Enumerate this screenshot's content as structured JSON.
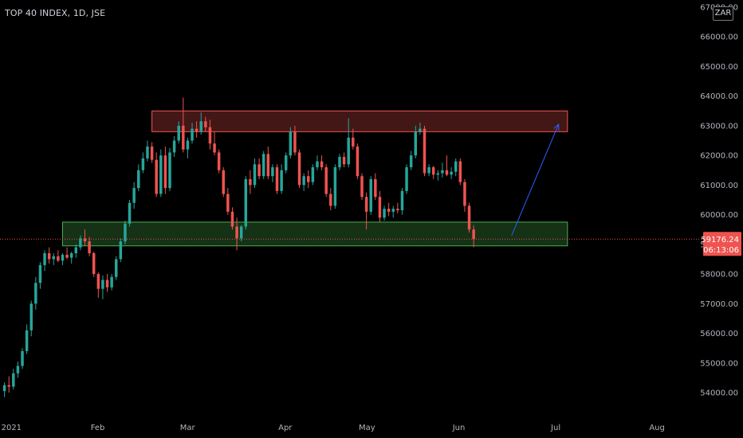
{
  "header": {
    "symbol_title": "TOP 40 INDEX, 1D, JSE",
    "currency": "ZAR"
  },
  "chart_data": {
    "type": "candlestick",
    "title": "TOP 40 INDEX, 1D, JSE",
    "currency": "ZAR",
    "ylim": [
      53500,
      67200
    ],
    "y_ticks": [
      "67000.00",
      "66000.00",
      "65000.00",
      "64000.00",
      "63000.00",
      "62000.00",
      "61000.00",
      "60000.00",
      "59000.00",
      "58000.00",
      "57000.00",
      "56000.00",
      "55000.00",
      "54000.00"
    ],
    "y_tick_values": [
      67000,
      66000,
      65000,
      64000,
      63000,
      62000,
      61000,
      60000,
      59000,
      58000,
      57000,
      56000,
      55000,
      54000
    ],
    "x_ticks": [
      {
        "label": "2021",
        "index": 0
      },
      {
        "label": "Feb",
        "index": 20
      },
      {
        "label": "Mar",
        "index": 40
      },
      {
        "label": "Apr",
        "index": 62
      },
      {
        "label": "May",
        "index": 80
      },
      {
        "label": "Jun",
        "index": 101
      },
      {
        "label": "Jul",
        "index": 123
      },
      {
        "label": "Aug",
        "index": 145
      }
    ],
    "x_domain": [
      -1,
      156
    ],
    "last_price": "59176.24",
    "countdown": "06:13:06",
    "last_value": 59176.24,
    "up_color": "#26a69a",
    "down_color": "#ef5350",
    "zones": [
      {
        "name": "resistance",
        "x_start": 33,
        "x_end": 126,
        "y_low": 62800,
        "y_high": 63500,
        "color": "#ef5350"
      },
      {
        "name": "support",
        "x_start": 13,
        "x_end": 126,
        "y_low": 58950,
        "y_high": 59750,
        "color": "#4caf50"
      }
    ],
    "arrow": {
      "from": [
        113.5,
        59300
      ],
      "to": [
        124,
        63050
      ],
      "color": "#2962ff"
    },
    "candles": [
      [
        0,
        54050,
        54350,
        53850,
        54250
      ],
      [
        1,
        54250,
        54550,
        54000,
        54200
      ],
      [
        2,
        54200,
        54800,
        54100,
        54650
      ],
      [
        3,
        54650,
        55050,
        54500,
        54900
      ],
      [
        4,
        54900,
        55500,
        54800,
        55400
      ],
      [
        5,
        55400,
        56300,
        55300,
        56100
      ],
      [
        6,
        56100,
        57100,
        55900,
        57000
      ],
      [
        7,
        57000,
        57900,
        56800,
        57700
      ],
      [
        8,
        57700,
        58400,
        57500,
        58300
      ],
      [
        9,
        58300,
        58800,
        58100,
        58700
      ],
      [
        10,
        58700,
        58900,
        58350,
        58500
      ],
      [
        11,
        58500,
        58700,
        58300,
        58600
      ],
      [
        12,
        58600,
        58800,
        58400,
        58450
      ],
      [
        13,
        58450,
        58700,
        58300,
        58650
      ],
      [
        14,
        58650,
        58900,
        58500,
        58550
      ],
      [
        15,
        58550,
        58750,
        58350,
        58700
      ],
      [
        16,
        58700,
        59000,
        58550,
        58900
      ],
      [
        17,
        58900,
        59300,
        58800,
        59200
      ],
      [
        18,
        59200,
        59500,
        58950,
        59100
      ],
      [
        19,
        59100,
        59250,
        58600,
        58700
      ],
      [
        20,
        58700,
        58750,
        57900,
        58000
      ],
      [
        21,
        58000,
        58050,
        57200,
        57500
      ],
      [
        22,
        57500,
        57950,
        57150,
        57800
      ],
      [
        23,
        57800,
        58000,
        57400,
        57550
      ],
      [
        24,
        57550,
        58000,
        57450,
        57900
      ],
      [
        25,
        57900,
        58600,
        57800,
        58500
      ],
      [
        26,
        58500,
        59200,
        58400,
        59100
      ],
      [
        27,
        59100,
        59800,
        59000,
        59700
      ],
      [
        28,
        59700,
        60500,
        59600,
        60400
      ],
      [
        29,
        60400,
        61100,
        60200,
        60900
      ],
      [
        30,
        60900,
        61700,
        60800,
        61500
      ],
      [
        31,
        61500,
        62100,
        61400,
        61900
      ],
      [
        32,
        61900,
        62500,
        61800,
        62300
      ],
      [
        33,
        62300,
        62450,
        61750,
        61850
      ],
      [
        34,
        61850,
        62100,
        60600,
        60700
      ],
      [
        35,
        60700,
        62200,
        60600,
        62000
      ],
      [
        36,
        62000,
        62300,
        60700,
        60900
      ],
      [
        37,
        60900,
        62250,
        60800,
        62100
      ],
      [
        38,
        62100,
        62650,
        61950,
        62500
      ],
      [
        39,
        62500,
        63150,
        62400,
        63000
      ],
      [
        40,
        63000,
        63950,
        62100,
        62200
      ],
      [
        41,
        62200,
        62600,
        61900,
        62500
      ],
      [
        42,
        62500,
        63100,
        62400,
        62900
      ],
      [
        43,
        62900,
        63150,
        62600,
        62800
      ],
      [
        44,
        62800,
        63450,
        62700,
        63150
      ],
      [
        45,
        63150,
        63300,
        62800,
        62950
      ],
      [
        46,
        62950,
        63200,
        62200,
        62400
      ],
      [
        47,
        62400,
        62800,
        62000,
        62100
      ],
      [
        48,
        62100,
        62200,
        61400,
        61500
      ],
      [
        49,
        61500,
        61600,
        60600,
        60700
      ],
      [
        50,
        60700,
        60900,
        60000,
        60100
      ],
      [
        51,
        60100,
        60250,
        59500,
        59600
      ],
      [
        52,
        59600,
        59900,
        58800,
        59200
      ],
      [
        53,
        59200,
        59650,
        59100,
        59600
      ],
      [
        54,
        59600,
        61300,
        59500,
        61200
      ],
      [
        55,
        61200,
        61500,
        60700,
        61000
      ],
      [
        56,
        61000,
        61900,
        60900,
        61700
      ],
      [
        57,
        61700,
        61900,
        61200,
        61300
      ],
      [
        58,
        61300,
        62150,
        61200,
        62050
      ],
      [
        59,
        62050,
        62300,
        61200,
        61300
      ],
      [
        60,
        61300,
        61700,
        61100,
        61600
      ],
      [
        61,
        61600,
        61700,
        60700,
        60800
      ],
      [
        62,
        60800,
        61700,
        60700,
        61500
      ],
      [
        63,
        61500,
        62100,
        61400,
        62000
      ],
      [
        64,
        62000,
        62950,
        61900,
        62800
      ],
      [
        65,
        62800,
        63000,
        62000,
        62100
      ],
      [
        66,
        62100,
        62200,
        60900,
        61000
      ],
      [
        67,
        61000,
        61400,
        60800,
        61300
      ],
      [
        68,
        61300,
        61500,
        60900,
        61100
      ],
      [
        69,
        61100,
        61700,
        61000,
        61600
      ],
      [
        70,
        61600,
        62000,
        61500,
        61800
      ],
      [
        71,
        61800,
        62000,
        61500,
        61600
      ],
      [
        72,
        61600,
        61700,
        60600,
        60700
      ],
      [
        73,
        60700,
        60900,
        60150,
        60300
      ],
      [
        74,
        60300,
        61700,
        60200,
        61600
      ],
      [
        75,
        61600,
        62050,
        61500,
        61950
      ],
      [
        76,
        61950,
        62100,
        61600,
        61700
      ],
      [
        77,
        61700,
        63250,
        61600,
        62600
      ],
      [
        78,
        62600,
        62900,
        62200,
        62300
      ],
      [
        79,
        62300,
        62400,
        61200,
        61300
      ],
      [
        80,
        61300,
        61400,
        60500,
        60600
      ],
      [
        81,
        60600,
        60750,
        59500,
        60100
      ],
      [
        82,
        60100,
        61300,
        60000,
        61200
      ],
      [
        83,
        61200,
        61400,
        60500,
        60600
      ],
      [
        84,
        60600,
        60800,
        59750,
        59900
      ],
      [
        85,
        59900,
        60300,
        59800,
        60200
      ],
      [
        86,
        60200,
        60400,
        59950,
        60100
      ],
      [
        87,
        60100,
        60300,
        59900,
        60200
      ],
      [
        88,
        60200,
        60400,
        60050,
        60150
      ],
      [
        89,
        60150,
        60900,
        60000,
        60800
      ],
      [
        90,
        60800,
        61700,
        60700,
        61600
      ],
      [
        91,
        61600,
        62150,
        61500,
        62000
      ],
      [
        92,
        62000,
        63000,
        61900,
        62800
      ],
      [
        93,
        62800,
        63100,
        62700,
        62900
      ],
      [
        94,
        62900,
        63000,
        61300,
        61400
      ],
      [
        95,
        61400,
        61700,
        61300,
        61600
      ],
      [
        96,
        61600,
        61650,
        61200,
        61350
      ],
      [
        97,
        61350,
        61500,
        61150,
        61400
      ],
      [
        98,
        61400,
        61750,
        61250,
        61500
      ],
      [
        99,
        61500,
        62000,
        61300,
        61350
      ],
      [
        100,
        61350,
        61600,
        61200,
        61450
      ],
      [
        101,
        61450,
        61900,
        61300,
        61800
      ],
      [
        102,
        61800,
        61900,
        61000,
        61100
      ],
      [
        103,
        61100,
        61200,
        60100,
        60300
      ],
      [
        104,
        60300,
        60400,
        59400,
        59500
      ],
      [
        105,
        59500,
        59650,
        58900,
        59176
      ]
    ]
  }
}
